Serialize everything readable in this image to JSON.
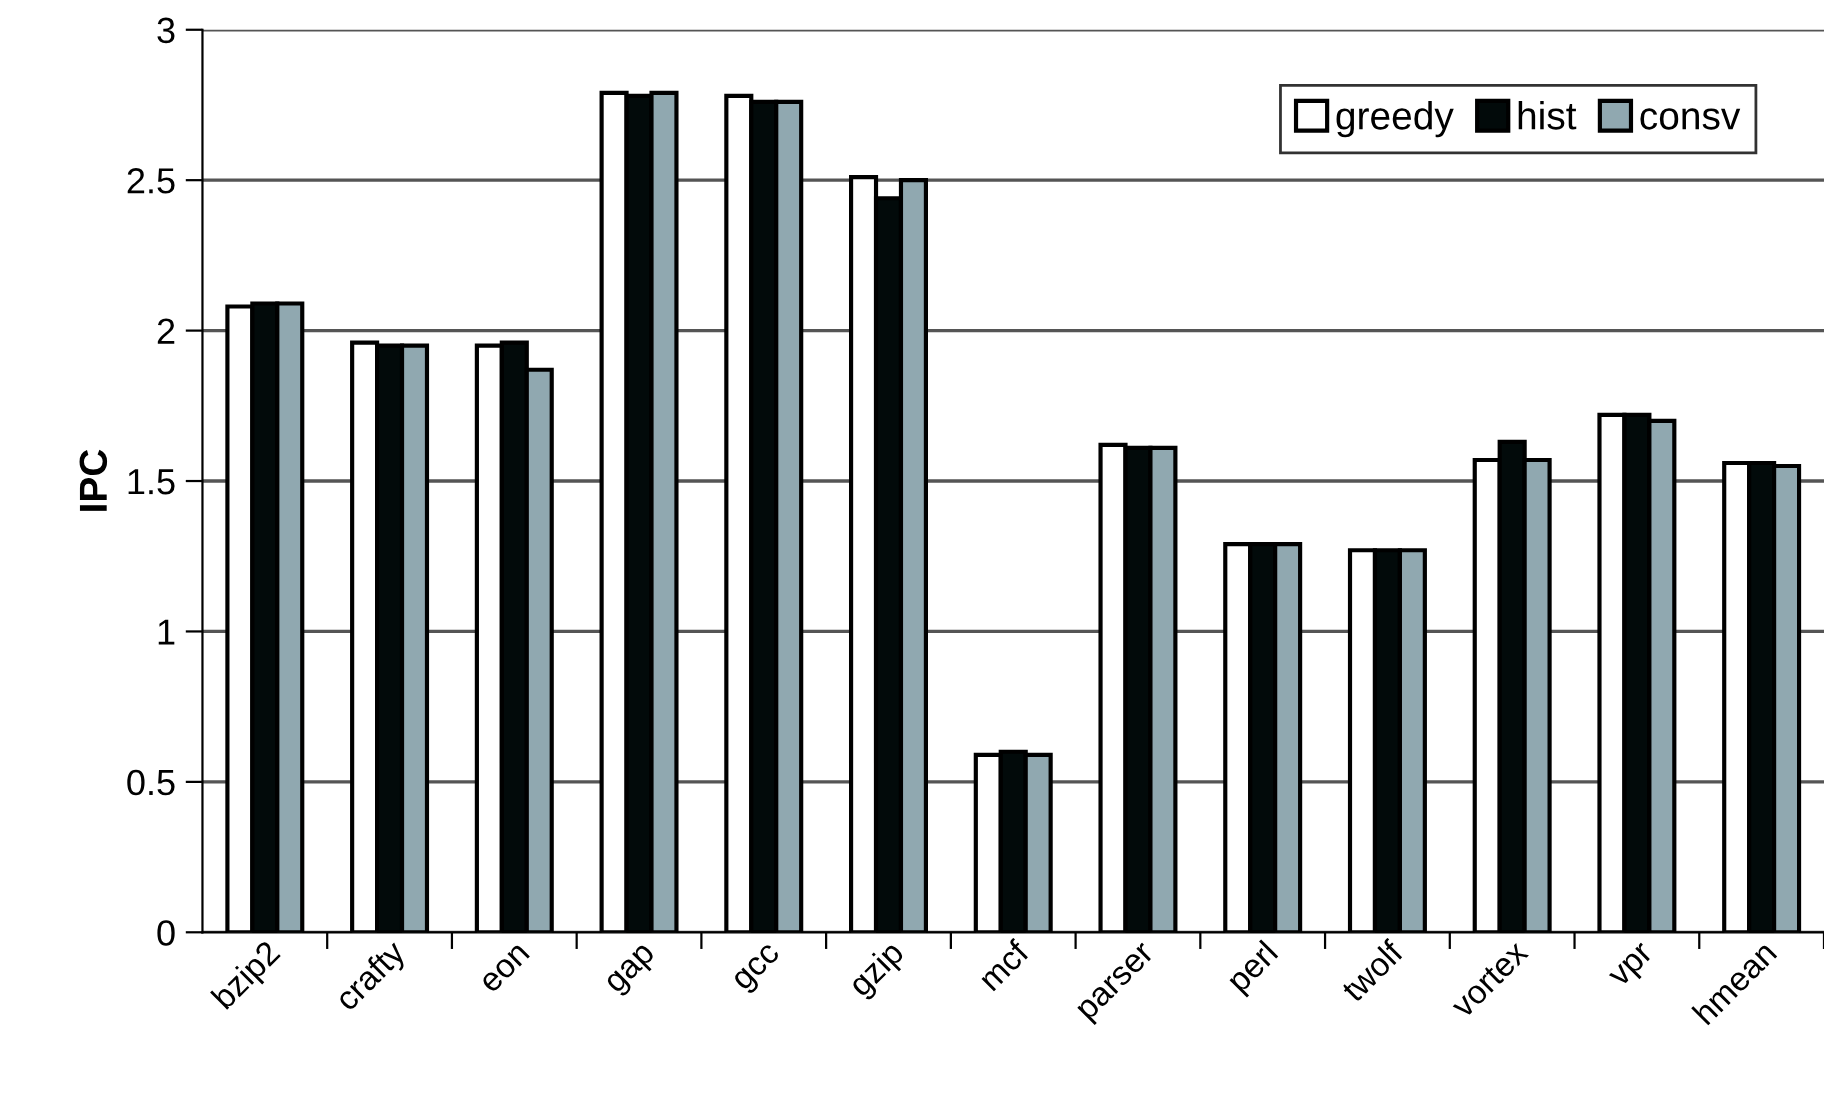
{
  "chart_data": {
    "type": "bar",
    "ylabel": "IPC",
    "categories": [
      "bzip2",
      "crafty",
      "eon",
      "gap",
      "gcc",
      "gzip",
      "mcf",
      "parser",
      "perl",
      "twolf",
      "vortex",
      "vpr",
      "hmean"
    ],
    "series": [
      {
        "name": "greedy",
        "color": "#ffffff",
        "values": [
          2.08,
          1.96,
          1.95,
          2.79,
          2.78,
          2.51,
          0.59,
          1.62,
          1.29,
          1.27,
          1.57,
          1.72,
          1.56
        ]
      },
      {
        "name": "hist",
        "color": "#020a0a",
        "values": [
          2.09,
          1.95,
          1.96,
          2.78,
          2.76,
          2.44,
          0.6,
          1.61,
          1.29,
          1.27,
          1.63,
          1.72,
          1.56
        ]
      },
      {
        "name": "consv",
        "color": "#90a8b0",
        "values": [
          2.09,
          1.95,
          1.87,
          2.79,
          2.76,
          2.5,
          0.59,
          1.61,
          1.29,
          1.27,
          1.57,
          1.7,
          1.55
        ]
      }
    ],
    "ylim": [
      0,
      3
    ],
    "yticks": [
      0,
      0.5,
      1,
      1.5,
      2,
      2.5,
      3
    ],
    "grid": "y",
    "legend": "top right"
  }
}
